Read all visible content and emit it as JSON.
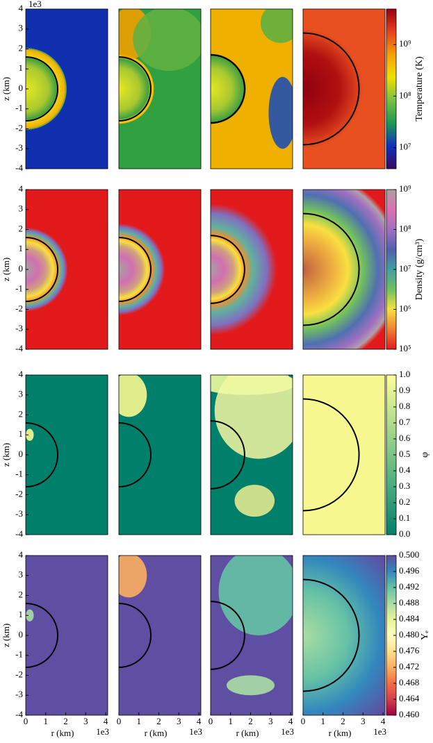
{
  "chart_data": [
    {
      "type": "heatmap",
      "ylabel": "z  (km)",
      "y_offset_label": "1e3",
      "ylim": [
        -4,
        4
      ],
      "yticks": [
        -4,
        -3,
        -2,
        -1,
        0,
        1,
        2,
        3,
        4
      ],
      "xlim": [
        0,
        4.1
      ],
      "colorbar_label": "Temperature (K)",
      "clim": [
        3900000,
        4900000000
      ],
      "clog": true,
      "cticks": [
        {
          "value": 10000000,
          "label": "10⁷"
        },
        {
          "value": 100000000,
          "label": "10⁸"
        },
        {
          "value": 1000000000,
          "label": "10⁹"
        }
      ],
      "colormap": [
        "#3a0a5a",
        "#1030c0",
        "#1a9a50",
        "#7ac040",
        "#f0e000",
        "#f8a000",
        "#e84020",
        "#9a0010"
      ]
    },
    {
      "type": "heatmap",
      "ylabel": "z  (km)",
      "ylim": [
        -4,
        4
      ],
      "yticks": [
        -4,
        -3,
        -2,
        -1,
        0,
        1,
        2,
        3,
        4
      ],
      "xlim": [
        0,
        4.1
      ],
      "colorbar_label": "Density (g/cm³)",
      "clim": [
        100000,
        1000000000
      ],
      "clog": true,
      "cticks": [
        {
          "value": 100000,
          "label": "10⁵"
        },
        {
          "value": 1000000,
          "label": "10⁶"
        },
        {
          "value": 10000000,
          "label": "10⁷"
        },
        {
          "value": 100000000,
          "label": "10⁸"
        },
        {
          "value": 1000000000,
          "label": "10⁹"
        }
      ],
      "colormap": [
        "#e31a1c",
        "#f08030",
        "#f8e040",
        "#70c060",
        "#40a0a0",
        "#5060b0",
        "#a070c0",
        "#e070b0",
        "#a8a0a0"
      ]
    },
    {
      "type": "heatmap",
      "ylabel": "z  (km)",
      "ylim": [
        -4,
        4
      ],
      "yticks": [
        -4,
        -3,
        -2,
        -1,
        0,
        1,
        2,
        3,
        4
      ],
      "xlim": [
        0,
        4.1
      ],
      "colorbar_label": "φ",
      "clim": [
        0,
        1
      ],
      "clog": false,
      "cticks": [
        {
          "value": 0,
          "label": "0.0"
        },
        {
          "value": 0.1,
          "label": "0.1"
        },
        {
          "value": 0.2,
          "label": "0.2"
        },
        {
          "value": 0.3,
          "label": "0.3"
        },
        {
          "value": 0.4,
          "label": "0.4"
        },
        {
          "value": 0.5,
          "label": "0.5"
        },
        {
          "value": 0.6,
          "label": "0.6"
        },
        {
          "value": 0.7,
          "label": "0.7"
        },
        {
          "value": 0.8,
          "label": "0.8"
        },
        {
          "value": 0.9,
          "label": "0.9"
        },
        {
          "value": 1,
          "label": "1.0"
        }
      ],
      "colormap": [
        "#00806a",
        "#50b080",
        "#a8d88a",
        "#ffff99"
      ]
    },
    {
      "type": "heatmap",
      "ylabel": "z  (km)",
      "ylim": [
        -4,
        4
      ],
      "yticks": [
        -4,
        -3,
        -2,
        -1,
        0,
        1,
        2,
        3,
        4
      ],
      "xlim": [
        0,
        4.1
      ],
      "xticks": [
        0,
        1,
        2,
        3,
        4
      ],
      "xlabel": "r  (km)",
      "x_offset_label": "1e3",
      "colorbar_label": "Yₑ",
      "clim": [
        0.46,
        0.5
      ],
      "clog": false,
      "cticks": [
        {
          "value": 0.46,
          "label": "0.460"
        },
        {
          "value": 0.464,
          "label": "0.464"
        },
        {
          "value": 0.468,
          "label": "0.468"
        },
        {
          "value": 0.472,
          "label": "0.472"
        },
        {
          "value": 0.476,
          "label": "0.476"
        },
        {
          "value": 0.48,
          "label": "0.480"
        },
        {
          "value": 0.484,
          "label": "0.484"
        },
        {
          "value": 0.488,
          "label": "0.488"
        },
        {
          "value": 0.492,
          "label": "0.492"
        },
        {
          "value": 0.496,
          "label": "0.496"
        },
        {
          "value": 0.5,
          "label": "0.500"
        }
      ],
      "colormap": [
        "#9e0142",
        "#d53e4f",
        "#f46d43",
        "#fdae61",
        "#fee08b",
        "#ffffbf",
        "#e6f598",
        "#abdda4",
        "#66c2a5",
        "#3288bd",
        "#5e4fa2"
      ]
    }
  ]
}
